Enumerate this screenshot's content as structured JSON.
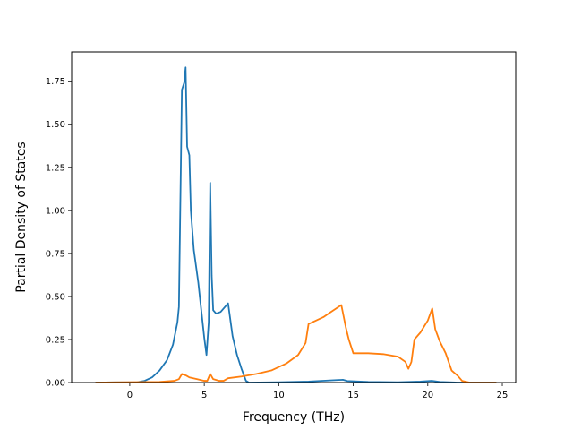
{
  "chart_data": {
    "type": "line",
    "title": "",
    "xlabel": "Frequency (THz)",
    "ylabel": "Partial Density of States",
    "xlim": [
      -3.9,
      25.9
    ],
    "ylim": [
      0,
      1.92
    ],
    "xticks": [
      0,
      5,
      10,
      15,
      20,
      25
    ],
    "yticks": [
      0.0,
      0.25,
      0.5,
      0.75,
      1.0,
      1.25,
      1.5,
      1.75
    ],
    "xtick_labels": [
      "0",
      "5",
      "10",
      "15",
      "20",
      "25"
    ],
    "ytick_labels": [
      "0.00",
      "0.25",
      "0.50",
      "0.75",
      "1.00",
      "1.25",
      "1.50",
      "1.75"
    ],
    "grid": false,
    "legend": "none",
    "series": [
      {
        "color": "#1f77b4",
        "points": [
          [
            -2.3,
            0.0
          ],
          [
            0.5,
            0.002
          ],
          [
            1.0,
            0.01
          ],
          [
            1.5,
            0.03
          ],
          [
            2.0,
            0.07
          ],
          [
            2.5,
            0.13
          ],
          [
            2.9,
            0.22
          ],
          [
            3.2,
            0.35
          ],
          [
            3.3,
            0.44
          ],
          [
            3.5,
            1.7
          ],
          [
            3.65,
            1.74
          ],
          [
            3.75,
            1.83
          ],
          [
            3.85,
            1.37
          ],
          [
            4.0,
            1.32
          ],
          [
            4.1,
            1.0
          ],
          [
            4.3,
            0.77
          ],
          [
            4.6,
            0.58
          ],
          [
            4.8,
            0.42
          ],
          [
            5.0,
            0.26
          ],
          [
            5.15,
            0.16
          ],
          [
            5.3,
            0.35
          ],
          [
            5.4,
            1.16
          ],
          [
            5.5,
            0.62
          ],
          [
            5.6,
            0.42
          ],
          [
            5.8,
            0.4
          ],
          [
            6.1,
            0.41
          ],
          [
            6.4,
            0.44
          ],
          [
            6.6,
            0.46
          ],
          [
            6.9,
            0.27
          ],
          [
            7.2,
            0.16
          ],
          [
            7.5,
            0.08
          ],
          [
            7.8,
            0.01
          ],
          [
            8.0,
            0.0
          ],
          [
            10.0,
            0.002
          ],
          [
            12.0,
            0.006
          ],
          [
            14.0,
            0.015
          ],
          [
            14.3,
            0.016
          ],
          [
            14.6,
            0.009
          ],
          [
            16.0,
            0.004
          ],
          [
            18.0,
            0.002
          ],
          [
            19.5,
            0.006
          ],
          [
            20.3,
            0.01
          ],
          [
            20.8,
            0.004
          ],
          [
            22.0,
            0.0
          ],
          [
            24.6,
            0.0
          ]
        ]
      },
      {
        "color": "#ff7f0e",
        "points": [
          [
            -2.3,
            0.0
          ],
          [
            2.0,
            0.004
          ],
          [
            3.0,
            0.01
          ],
          [
            3.3,
            0.02
          ],
          [
            3.5,
            0.05
          ],
          [
            3.8,
            0.04
          ],
          [
            4.0,
            0.03
          ],
          [
            4.5,
            0.02
          ],
          [
            5.0,
            0.01
          ],
          [
            5.2,
            0.01
          ],
          [
            5.4,
            0.05
          ],
          [
            5.6,
            0.02
          ],
          [
            6.0,
            0.01
          ],
          [
            6.3,
            0.01
          ],
          [
            6.6,
            0.025
          ],
          [
            7.5,
            0.035
          ],
          [
            8.5,
            0.05
          ],
          [
            9.5,
            0.07
          ],
          [
            10.5,
            0.11
          ],
          [
            11.3,
            0.16
          ],
          [
            11.8,
            0.23
          ],
          [
            12.0,
            0.34
          ],
          [
            12.5,
            0.36
          ],
          [
            13.0,
            0.38
          ],
          [
            13.5,
            0.41
          ],
          [
            14.2,
            0.45
          ],
          [
            14.5,
            0.32
          ],
          [
            14.7,
            0.25
          ],
          [
            15.0,
            0.17
          ],
          [
            16.0,
            0.17
          ],
          [
            17.0,
            0.165
          ],
          [
            18.0,
            0.15
          ],
          [
            18.5,
            0.12
          ],
          [
            18.7,
            0.08
          ],
          [
            18.9,
            0.12
          ],
          [
            19.1,
            0.25
          ],
          [
            19.5,
            0.29
          ],
          [
            20.0,
            0.36
          ],
          [
            20.3,
            0.43
          ],
          [
            20.5,
            0.31
          ],
          [
            20.8,
            0.24
          ],
          [
            21.2,
            0.17
          ],
          [
            21.6,
            0.07
          ],
          [
            22.0,
            0.04
          ],
          [
            22.3,
            0.01
          ],
          [
            22.8,
            0.0
          ],
          [
            24.6,
            0.0
          ]
        ]
      }
    ]
  }
}
